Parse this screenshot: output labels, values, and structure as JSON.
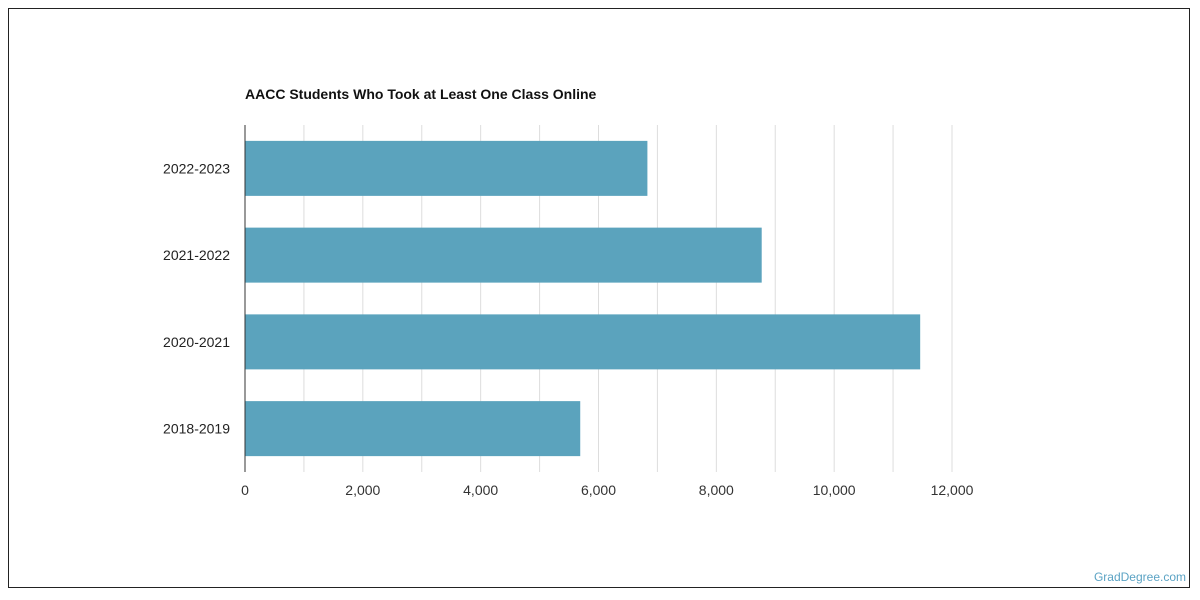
{
  "chart_data": {
    "type": "bar",
    "orientation": "horizontal",
    "title": "AACC Students Who Took at Least One Class Online",
    "categories": [
      "2022-2023",
      "2021-2022",
      "2020-2021",
      "2018-2019"
    ],
    "values": [
      6830,
      8770,
      11460,
      5690
    ],
    "xlabel": "",
    "ylabel": "",
    "xlim": [
      0,
      12000
    ],
    "xticks": [
      0,
      2000,
      4000,
      6000,
      8000,
      10000,
      12000
    ],
    "xtick_labels": [
      "0",
      "2,000",
      "4,000",
      "6,000",
      "8,000",
      "10,000",
      "12,000"
    ],
    "grid": true,
    "legend": "none",
    "bar_color": "#5ba3bd",
    "grid_color": "#dddddd"
  },
  "footer": {
    "source": "GradDegree.com"
  }
}
